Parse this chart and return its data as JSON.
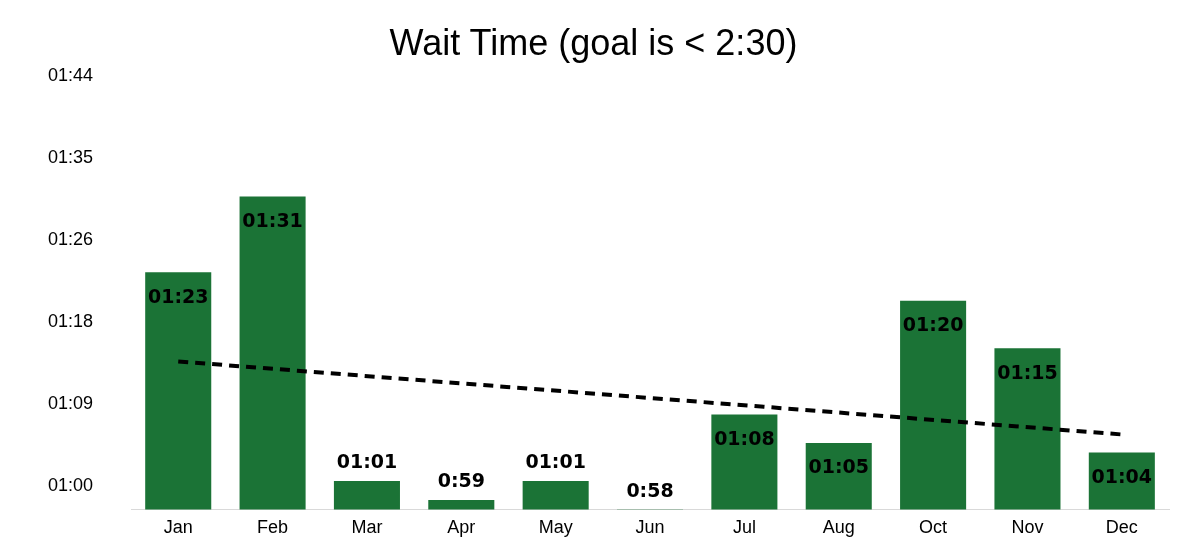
{
  "chart_data": {
    "type": "bar",
    "title": "Wait Time (goal is < 2:30)",
    "categories": [
      "Jan",
      "Feb",
      "Mar",
      "Apr",
      "May",
      "Jun",
      "Jul",
      "Aug",
      "Oct",
      "Nov",
      "Dec"
    ],
    "series": [
      {
        "color": "#1b7336",
        "values": [
          83,
          91,
          61,
          59,
          61,
          58,
          68,
          65,
          80,
          75,
          64
        ],
        "value_labels": [
          "01:23",
          "01:31",
          "01:01",
          "0:59",
          "01:01",
          "0:58",
          "01:08",
          "01:05",
          "01:20",
          "01:15",
          "01:04"
        ]
      },
      {
        "type": "line",
        "x": [
          "Jan",
          "Dec"
        ],
        "values": [
          73.6,
          65.9
        ],
        "color": "#000000",
        "line_style": "dashed",
        "marker": "none"
      }
    ],
    "ylim": [
      58,
      103.68
    ],
    "yticks": [
      {
        "value": 60.48,
        "label": "01:00"
      },
      {
        "value": 69.12,
        "label": "01:09"
      },
      {
        "value": 77.76,
        "label": "01:18"
      },
      {
        "value": 86.4,
        "label": "01:26"
      },
      {
        "value": 95.04,
        "label": "01:35"
      },
      {
        "value": 103.68,
        "label": "01:44"
      }
    ],
    "grid": false,
    "legend": false
  }
}
